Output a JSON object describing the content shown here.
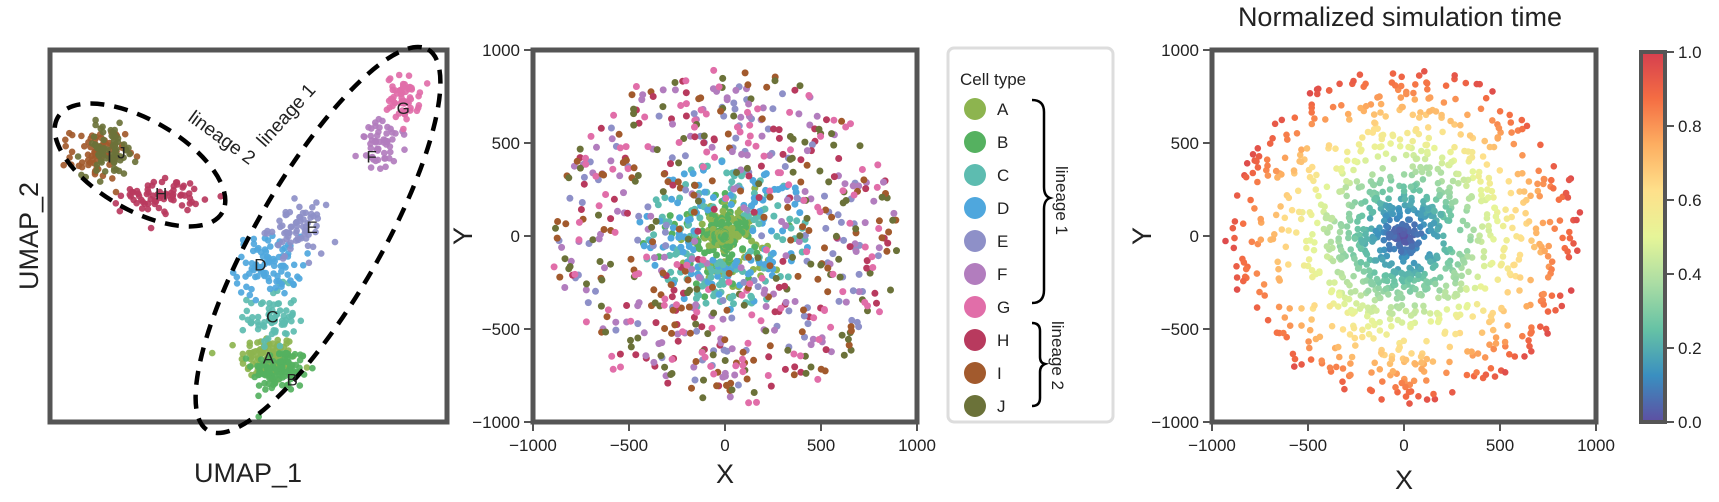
{
  "chart_data": [
    {
      "type": "scatter",
      "xlabel": "UMAP_1",
      "ylabel": "UMAP_2",
      "grid": false,
      "ticks": false,
      "xlim": [
        0,
        100
      ],
      "ylim": [
        0,
        100
      ],
      "clusters": [
        {
          "label": "A",
          "type": "A",
          "x": 55,
          "y": 17,
          "sx": 3.5,
          "sy": 3.2,
          "n": 110
        },
        {
          "label": "B",
          "type": "B",
          "x": 58,
          "y": 14,
          "sx": 3.5,
          "sy": 3.0,
          "n": 110
        },
        {
          "label": "C",
          "type": "C",
          "x": 56,
          "y": 28,
          "sx": 3.0,
          "sy": 4.0,
          "n": 70
        },
        {
          "label": "D",
          "type": "D",
          "x": 55,
          "y": 42,
          "sx": 4.2,
          "sy": 4.0,
          "n": 90
        },
        {
          "label": "E",
          "type": "E",
          "x": 62,
          "y": 52,
          "sx": 3.5,
          "sy": 3.2,
          "n": 65
        },
        {
          "label": "F",
          "type": "F",
          "x": 84,
          "y": 74,
          "sx": 3.0,
          "sy": 3.5,
          "n": 55
        },
        {
          "label": "G",
          "type": "G",
          "x": 89,
          "y": 87,
          "sx": 2.0,
          "sy": 3.0,
          "n": 60
        },
        {
          "label": "H",
          "type": "H",
          "x": 28,
          "y": 61,
          "sx": 5.0,
          "sy": 2.3,
          "n": 70
        },
        {
          "label": "I",
          "type": "I",
          "x": 12,
          "y": 72,
          "sx": 3.4,
          "sy": 3.4,
          "n": 75
        },
        {
          "label": "J",
          "type": "J",
          "x": 15,
          "y": 73,
          "sx": 3.4,
          "sy": 3.4,
          "n": 70
        }
      ],
      "lineage_labels": [
        "lineage 2",
        "lineage 1"
      ]
    },
    {
      "type": "scatter",
      "xlabel": "X",
      "ylabel": "Y",
      "xlim": [
        -1000,
        1000
      ],
      "ylim": [
        -1000,
        1000
      ],
      "xticks": [
        -1000,
        -500,
        0,
        500,
        1000
      ],
      "yticks": [
        -1000,
        -500,
        0,
        500,
        1000
      ],
      "xtick_labels": [
        "−1000",
        "−500",
        "0",
        "500",
        "1000"
      ],
      "ytick_labels": [
        "−1000",
        "−500",
        "0",
        "500",
        "1000"
      ],
      "grid": false,
      "color_by": "cell type",
      "radius_scale_by_type": {
        "A": 0.12,
        "B": 0.15,
        "C": 0.3,
        "D": 0.38,
        "E": 0.55,
        "F": 0.6,
        "G": 0.7,
        "H": 0.6,
        "I": 0.65,
        "J": 0.65
      },
      "legend": {
        "title": "Cell type",
        "placement": "right",
        "entries": [
          {
            "label": "A",
            "color": "#8db44f"
          },
          {
            "label": "B",
            "color": "#55b160"
          },
          {
            "label": "C",
            "color": "#5dbcb0"
          },
          {
            "label": "D",
            "color": "#4fa7dd"
          },
          {
            "label": "E",
            "color": "#8e90c8"
          },
          {
            "label": "F",
            "color": "#b27dbe"
          },
          {
            "label": "G",
            "color": "#e16ea9"
          },
          {
            "label": "H",
            "color": "#b83a5e"
          },
          {
            "label": "I",
            "color": "#a25a2d"
          },
          {
            "label": "J",
            "color": "#6b7239"
          }
        ],
        "groups": [
          {
            "label": "lineage 1",
            "types": [
              "A",
              "B",
              "C",
              "D",
              "E",
              "F",
              "G"
            ]
          },
          {
            "label": "lineage 2",
            "types": [
              "H",
              "I",
              "J"
            ]
          }
        ]
      }
    },
    {
      "type": "scatter",
      "title": "Normalized simulation time",
      "xlabel": "X",
      "ylabel": "Y",
      "xlim": [
        -1000,
        1000
      ],
      "ylim": [
        -1000,
        1000
      ],
      "xticks": [
        -1000,
        -500,
        0,
        500,
        1000
      ],
      "yticks": [
        -1000,
        -500,
        0,
        500,
        1000
      ],
      "xtick_labels": [
        "−1000",
        "−500",
        "0",
        "500",
        "1000"
      ],
      "ytick_labels": [
        "−1000",
        "−500",
        "0",
        "500",
        "1000"
      ],
      "grid": false,
      "color_by": "normalized simulation time",
      "colorbar": {
        "min": 0.0,
        "max": 1.0,
        "ticks": [
          0.0,
          0.2,
          0.4,
          0.6,
          0.8,
          1.0
        ],
        "tick_labels": [
          "0.0",
          "0.2",
          "0.4",
          "0.6",
          "0.8",
          "1.0"
        ],
        "colormap": "spectral_r",
        "stops": [
          "#5e4fa2",
          "#3a8fc0",
          "#66c2a5",
          "#abdda4",
          "#e6f598",
          "#fee08b",
          "#fdae61",
          "#f46d43",
          "#d53e4f"
        ]
      }
    }
  ]
}
